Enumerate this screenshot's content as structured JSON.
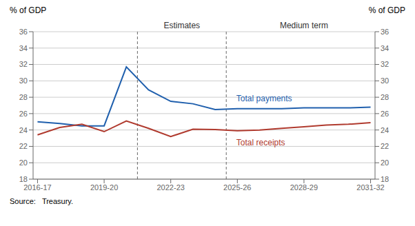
{
  "chart_data": {
    "type": "line",
    "x": [
      0,
      1,
      2,
      3,
      4,
      5,
      6,
      7,
      8,
      9,
      10,
      11,
      12,
      13,
      14,
      15
    ],
    "series": [
      {
        "name": "Total payments",
        "color": "#1f5fad",
        "values": [
          25.0,
          24.8,
          24.5,
          24.5,
          31.7,
          28.9,
          27.5,
          27.2,
          26.5,
          26.6,
          26.6,
          26.6,
          26.7,
          26.7,
          26.7,
          26.8
        ],
        "label_x": 8.8,
        "label_y": 27.9
      },
      {
        "name": "Total receipts",
        "color": "#b03a2e",
        "values": [
          23.4,
          24.3,
          24.7,
          23.8,
          25.1,
          24.2,
          23.2,
          24.1,
          24.05,
          23.9,
          24.0,
          24.2,
          24.4,
          24.6,
          24.7,
          24.9
        ],
        "label_x": 8.8,
        "label_y": 22.5
      }
    ],
    "xlim": [
      -0.2,
      15.2
    ],
    "xticks": [
      {
        "value": 0,
        "label": "2016-17"
      },
      {
        "value": 3,
        "label": "2019-20"
      },
      {
        "value": 6,
        "label": "2022-23"
      },
      {
        "value": 9,
        "label": "2025-26"
      },
      {
        "value": 12,
        "label": "2028-29"
      },
      {
        "value": 15,
        "label": "2031-32"
      }
    ],
    "ylabel": "% of GDP",
    "y2label": "% of GDP",
    "ylim": [
      18,
      36
    ],
    "yticks": [
      18,
      20,
      22,
      24,
      26,
      28,
      30,
      32,
      34,
      36
    ],
    "y2lim": [
      18,
      36
    ],
    "y2ticks": [
      18,
      20,
      22,
      24,
      26,
      28,
      30,
      32,
      34,
      36
    ],
    "grid": true,
    "vlines": [
      4.5,
      8.5
    ],
    "annotations": [
      {
        "text": "Estimates",
        "x": 6.5
      },
      {
        "text": "Medium term",
        "x": 12.0
      }
    ],
    "source": "Source:   Treasury."
  }
}
